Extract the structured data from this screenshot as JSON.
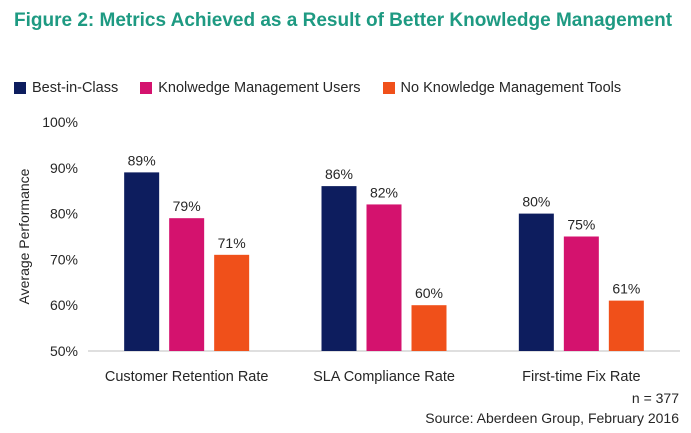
{
  "title": "Figure 2: Metrics Achieved as a Result of Better Knowledge Management",
  "colors": {
    "title": "#1e9a82",
    "best_in_class": "#0d1d5e",
    "km_users": "#d4126e",
    "no_km": "#f0501a",
    "axis": "#bfbfbf"
  },
  "footer": {
    "n": "n = 377",
    "source": "Source: Aberdeen Group, February 2016"
  },
  "chart_data": {
    "type": "bar",
    "categories": [
      "Customer Retention Rate",
      "SLA Compliance Rate",
      "First-time Fix Rate"
    ],
    "series": [
      {
        "name": "Best-in-Class",
        "values": [
          89,
          86,
          80
        ],
        "labels": [
          "89%",
          "86%",
          "80%"
        ],
        "color": "#0d1d5e"
      },
      {
        "name": "Knolwedge Management Users",
        "values": [
          79,
          82,
          75
        ],
        "labels": [
          "79%",
          "82%",
          "75%"
        ],
        "color": "#d4126e"
      },
      {
        "name": "No Knowledge Management Tools",
        "values": [
          71,
          60,
          61
        ],
        "labels": [
          "71%",
          "60%",
          "61%"
        ],
        "color": "#f0501a"
      }
    ],
    "ylabel": "Average Performance",
    "xlabel": "",
    "ylim": [
      50,
      100
    ],
    "yticks": [
      50,
      60,
      70,
      80,
      90,
      100
    ],
    "ytick_labels": [
      "50%",
      "60%",
      "70%",
      "80%",
      "90%",
      "100%"
    ],
    "legend": "top",
    "grid": false
  }
}
